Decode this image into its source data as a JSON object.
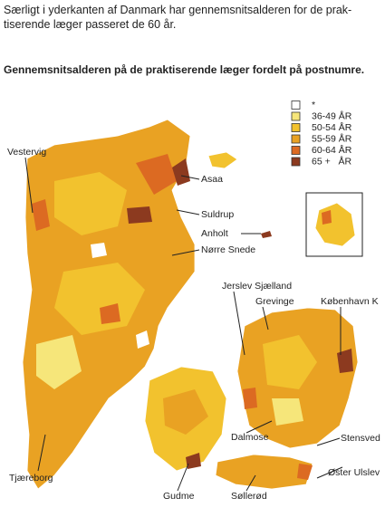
{
  "header": {
    "lines": [
      "Særligt i yderkanten af Danmark har gennemsnitsalderen for de prak-",
      "tiserende læger passeret de 60 år."
    ],
    "subtitle": "Gennemsnitsalderen på de praktiserende læger fordelt på postnumre."
  },
  "legend": [
    {
      "label": "*",
      "color": "#ffffff"
    },
    {
      "label": "36-49 ÅR",
      "color": "#f6e67a"
    },
    {
      "label": "50-54 ÅR",
      "color": "#f2c22e"
    },
    {
      "label": "55-59 ÅR",
      "color": "#e9a223"
    },
    {
      "label": "60-64 ÅR",
      "color": "#dc6a22"
    },
    {
      "label": "65 +   ÅR",
      "color": "#8c3a1f"
    }
  ],
  "places": [
    "Vestervig",
    "Asaa",
    "Suldrup",
    "Anholt",
    "Nørre Snede",
    "Jerslev Sjælland",
    "Grevinge",
    "København K",
    "Dalmose",
    "Stensved",
    "Tjæreborg",
    "Gudme",
    "Søllerød",
    "Øster Ulslev"
  ]
}
